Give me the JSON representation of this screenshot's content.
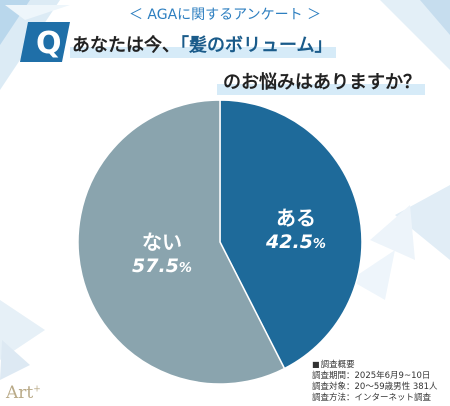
{
  "header": {
    "survey_label": "＜ AGAに関するアンケート ＞",
    "q_mark": "Q",
    "question_line1_pre": "あなたは今、",
    "question_line1_highlight": "「髪のボリューム」",
    "question_line2": "のお悩みはありますか？"
  },
  "colors": {
    "yes": "#1e6a9a",
    "no": "#8aa4ae",
    "accent": "#2e7fc0"
  },
  "chart_data": {
    "type": "pie",
    "title": "あなたは今、「髪のボリューム」のお悩みはありますか？",
    "slices": [
      {
        "label": "ある",
        "value": 42.5,
        "display": "42.5",
        "unit": "%"
      },
      {
        "label": "ない",
        "value": 57.5,
        "display": "57.5",
        "unit": "%"
      }
    ],
    "start": "12 o'clock",
    "direction": "clockwise"
  },
  "notes": {
    "title": "調査概要",
    "period": "調査期間：2025年6月9~10日",
    "target": "調査対象：20～59歳男性  381人",
    "method": "調査方法：インターネット調査"
  },
  "brand": {
    "name": "Art",
    "mark": "+"
  }
}
